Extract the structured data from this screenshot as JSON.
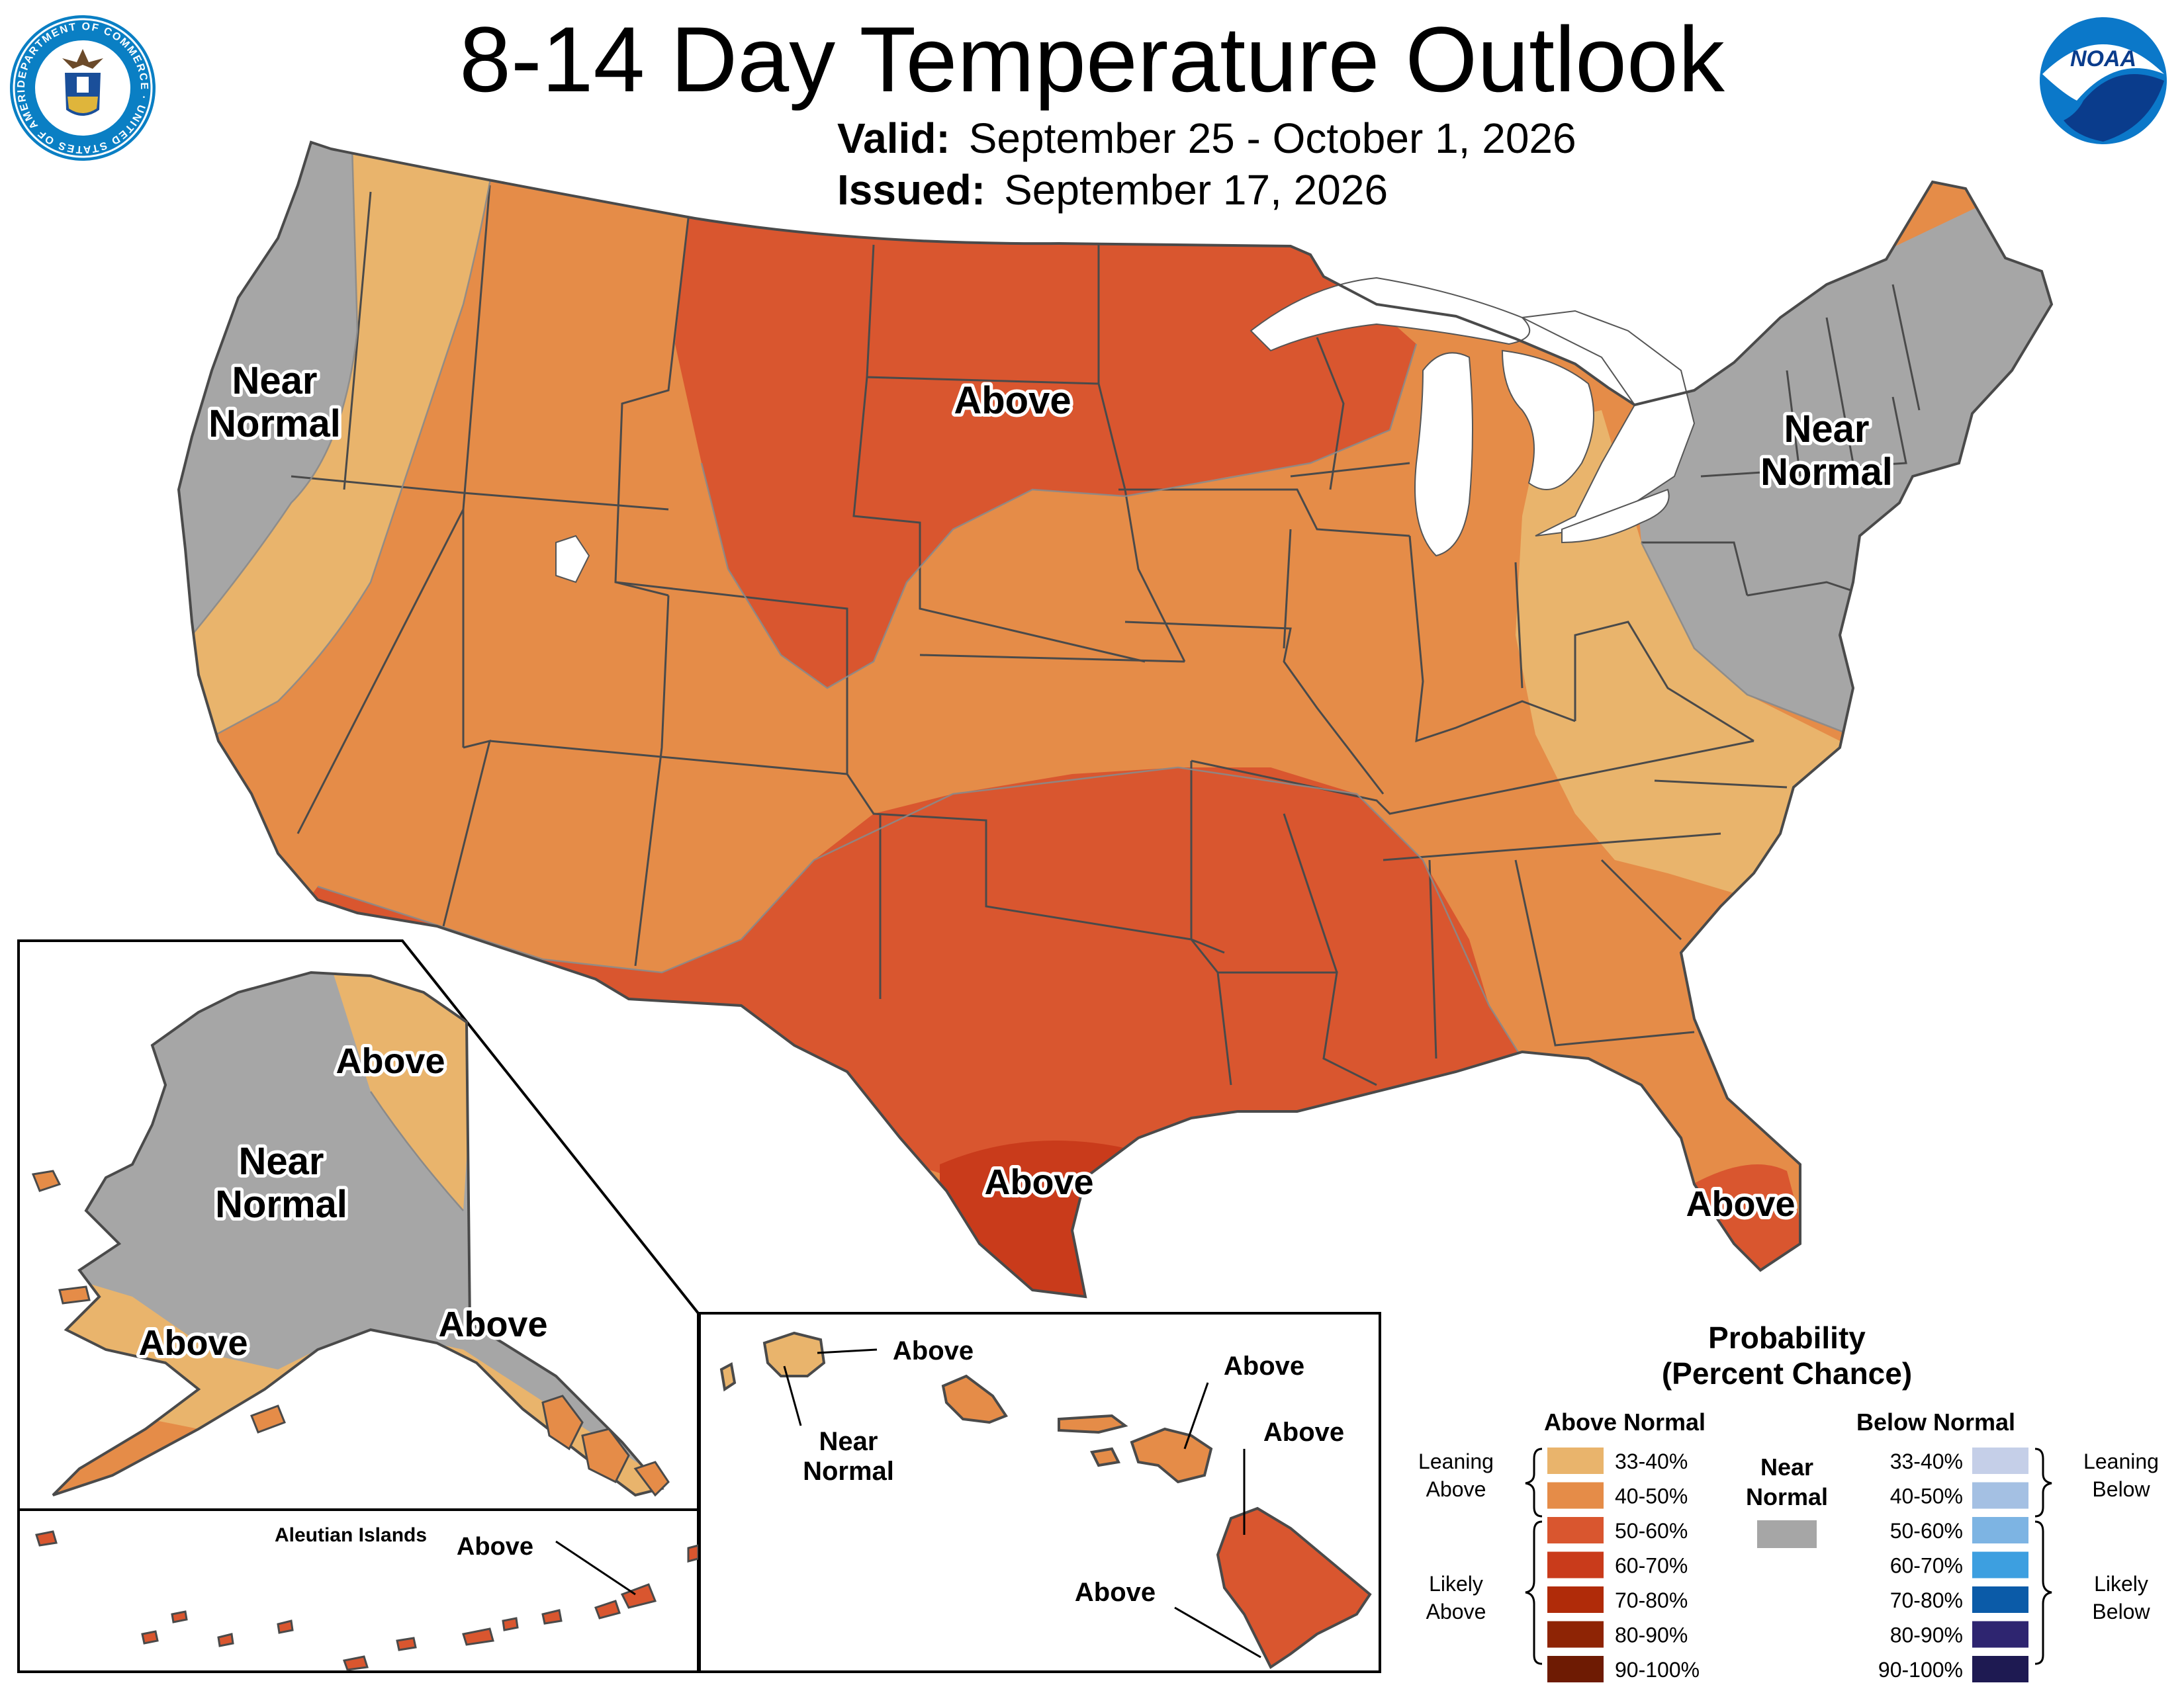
{
  "title": "8-14 Day Temperature Outlook",
  "valid": {
    "label": "Valid:",
    "value": "September 25 - October 1, 2026"
  },
  "issued": {
    "label": "Issued:",
    "value": "September 17, 2026"
  },
  "logos": {
    "left": {
      "icon": "department-of-commerce-seal-icon",
      "ring_text": "DEPARTMENT OF COMMERCE · UNITED STATES OF AMERICA"
    },
    "right": {
      "icon": "noaa-logo-icon",
      "text": "NOAA"
    }
  },
  "map_labels": {
    "conus": [
      {
        "id": "nw",
        "lines": [
          "Near",
          "Normal"
        ]
      },
      {
        "id": "plains",
        "lines": [
          "Above"
        ]
      },
      {
        "id": "ne",
        "lines": [
          "Near",
          "Normal"
        ]
      },
      {
        "id": "tx",
        "lines": [
          "Above"
        ]
      },
      {
        "id": "fl",
        "lines": [
          "Above"
        ]
      }
    ],
    "alaska": [
      {
        "id": "ak-ne",
        "lines": [
          "Above"
        ]
      },
      {
        "id": "ak-main",
        "lines": [
          "Near",
          "Normal"
        ]
      },
      {
        "id": "ak-sw",
        "lines": [
          "Above"
        ]
      },
      {
        "id": "ak-se",
        "lines": [
          "Above"
        ]
      }
    ],
    "aleutian": {
      "title": "Aleutian Islands",
      "label": "Above"
    },
    "hawaii": [
      {
        "id": "hi-kauai",
        "lines": [
          "Above"
        ]
      },
      {
        "id": "hi-niihau",
        "lines": [
          "Near",
          "Normal"
        ]
      },
      {
        "id": "hi-oahu",
        "lines": [
          "Above"
        ]
      },
      {
        "id": "hi-maui",
        "lines": [
          "Above"
        ]
      },
      {
        "id": "hi-big",
        "lines": [
          "Above"
        ]
      }
    ]
  },
  "legend": {
    "title_lines": [
      "Probability",
      "(Percent Chance)"
    ],
    "above_header": "Above Normal",
    "below_header": "Below Normal",
    "near_label_lines": [
      "Near",
      "Normal"
    ],
    "near_color": "#a6a6a6",
    "leaning_above": [
      "Leaning",
      "Above"
    ],
    "likely_above": [
      "Likely",
      "Above"
    ],
    "leaning_below": [
      "Leaning",
      "Below"
    ],
    "likely_below": [
      "Likely",
      "Below"
    ],
    "above": [
      {
        "range": "33-40%",
        "color": "#e9b46c"
      },
      {
        "range": "40-50%",
        "color": "#e58c48"
      },
      {
        "range": "50-60%",
        "color": "#d9562f"
      },
      {
        "range": "60-70%",
        "color": "#c93b1b"
      },
      {
        "range": "70-80%",
        "color": "#b02b09"
      },
      {
        "range": "80-90%",
        "color": "#8e2405"
      },
      {
        "range": "90-100%",
        "color": "#6e1b03"
      }
    ],
    "below": [
      {
        "range": "33-40%",
        "color": "#c5cfe8"
      },
      {
        "range": "40-50%",
        "color": "#a4c0e3"
      },
      {
        "range": "50-60%",
        "color": "#7db4e3"
      },
      {
        "range": "60-70%",
        "color": "#3d9fe0"
      },
      {
        "range": "70-80%",
        "color": "#0b5ba8"
      },
      {
        "range": "80-90%",
        "color": "#2e2570"
      },
      {
        "range": "90-100%",
        "color": "#1e1a52"
      }
    ]
  }
}
